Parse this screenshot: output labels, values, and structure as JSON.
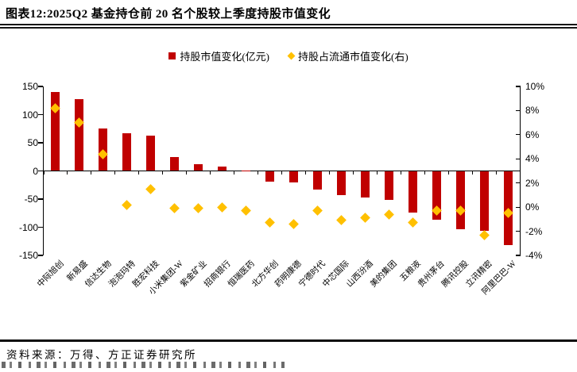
{
  "title": "图表12:2025Q2 基金持仓前 20 名个股较上季度持股市值变化",
  "legend": [
    {
      "label": "持股市值变化(亿元)",
      "marker": "square",
      "color": "#c00000"
    },
    {
      "label": "持股占流通市值变化(右)",
      "marker": "diamond",
      "color": "#ffc000"
    }
  ],
  "source": {
    "text": "资料来源：万得、方正证券研究所"
  },
  "colors": {
    "bar": "#c00000",
    "diamond": "#ffc000",
    "axis": "#000000"
  },
  "chart_data": {
    "type": "bar",
    "subtype": "combo-bar-scatter-dual-axis",
    "title": "2025Q2 基金持仓前 20 名个股较上季度持股市值变化",
    "categories": [
      "中际旭创",
      "新易盛",
      "信达生物",
      "泡泡玛特",
      "胜宏科技",
      "小米集团-W",
      "紫金矿业",
      "招商银行",
      "恒瑞医药",
      "北方华创",
      "药明康德",
      "宁德时代",
      "中芯国际",
      "山西汾酒",
      "美的集团",
      "五粮液",
      "贵州茅台",
      "腾讯控股",
      "立讯精密",
      "阿里巴巴-W"
    ],
    "series": [
      {
        "name": "持股市值变化(亿元)",
        "type": "bar",
        "axis": "left",
        "color": "#c00000",
        "values": [
          140,
          128,
          76,
          67,
          63,
          24,
          12,
          8,
          1,
          -19,
          -21,
          -33,
          -43,
          -47,
          -52,
          -74,
          -87,
          -104,
          -106,
          -131
        ]
      },
      {
        "name": "持股占流通市值变化(右)",
        "type": "scatter",
        "axis": "right",
        "color": "#ffc000",
        "values": [
          8.2,
          7.0,
          4.4,
          0.2,
          1.5,
          -0.1,
          -0.1,
          0.0,
          -0.3,
          -1.3,
          -1.4,
          -0.3,
          -1.1,
          -0.9,
          -0.6,
          -1.3,
          -0.3,
          -0.3,
          -2.3,
          -0.5
        ]
      }
    ],
    "left_axis": {
      "ticks": [
        "150",
        "100",
        "50",
        "0",
        "-50",
        "-100",
        "-150"
      ],
      "range": [
        -150,
        150
      ],
      "label": "亿元"
    },
    "right_axis": {
      "ticks": [
        "10%",
        "8%",
        "6%",
        "4%",
        "2%",
        "0%",
        "-2%",
        "-4%"
      ],
      "range": [
        -4,
        10
      ],
      "unit": "%"
    },
    "grid": false,
    "legend_position": "top-center"
  }
}
